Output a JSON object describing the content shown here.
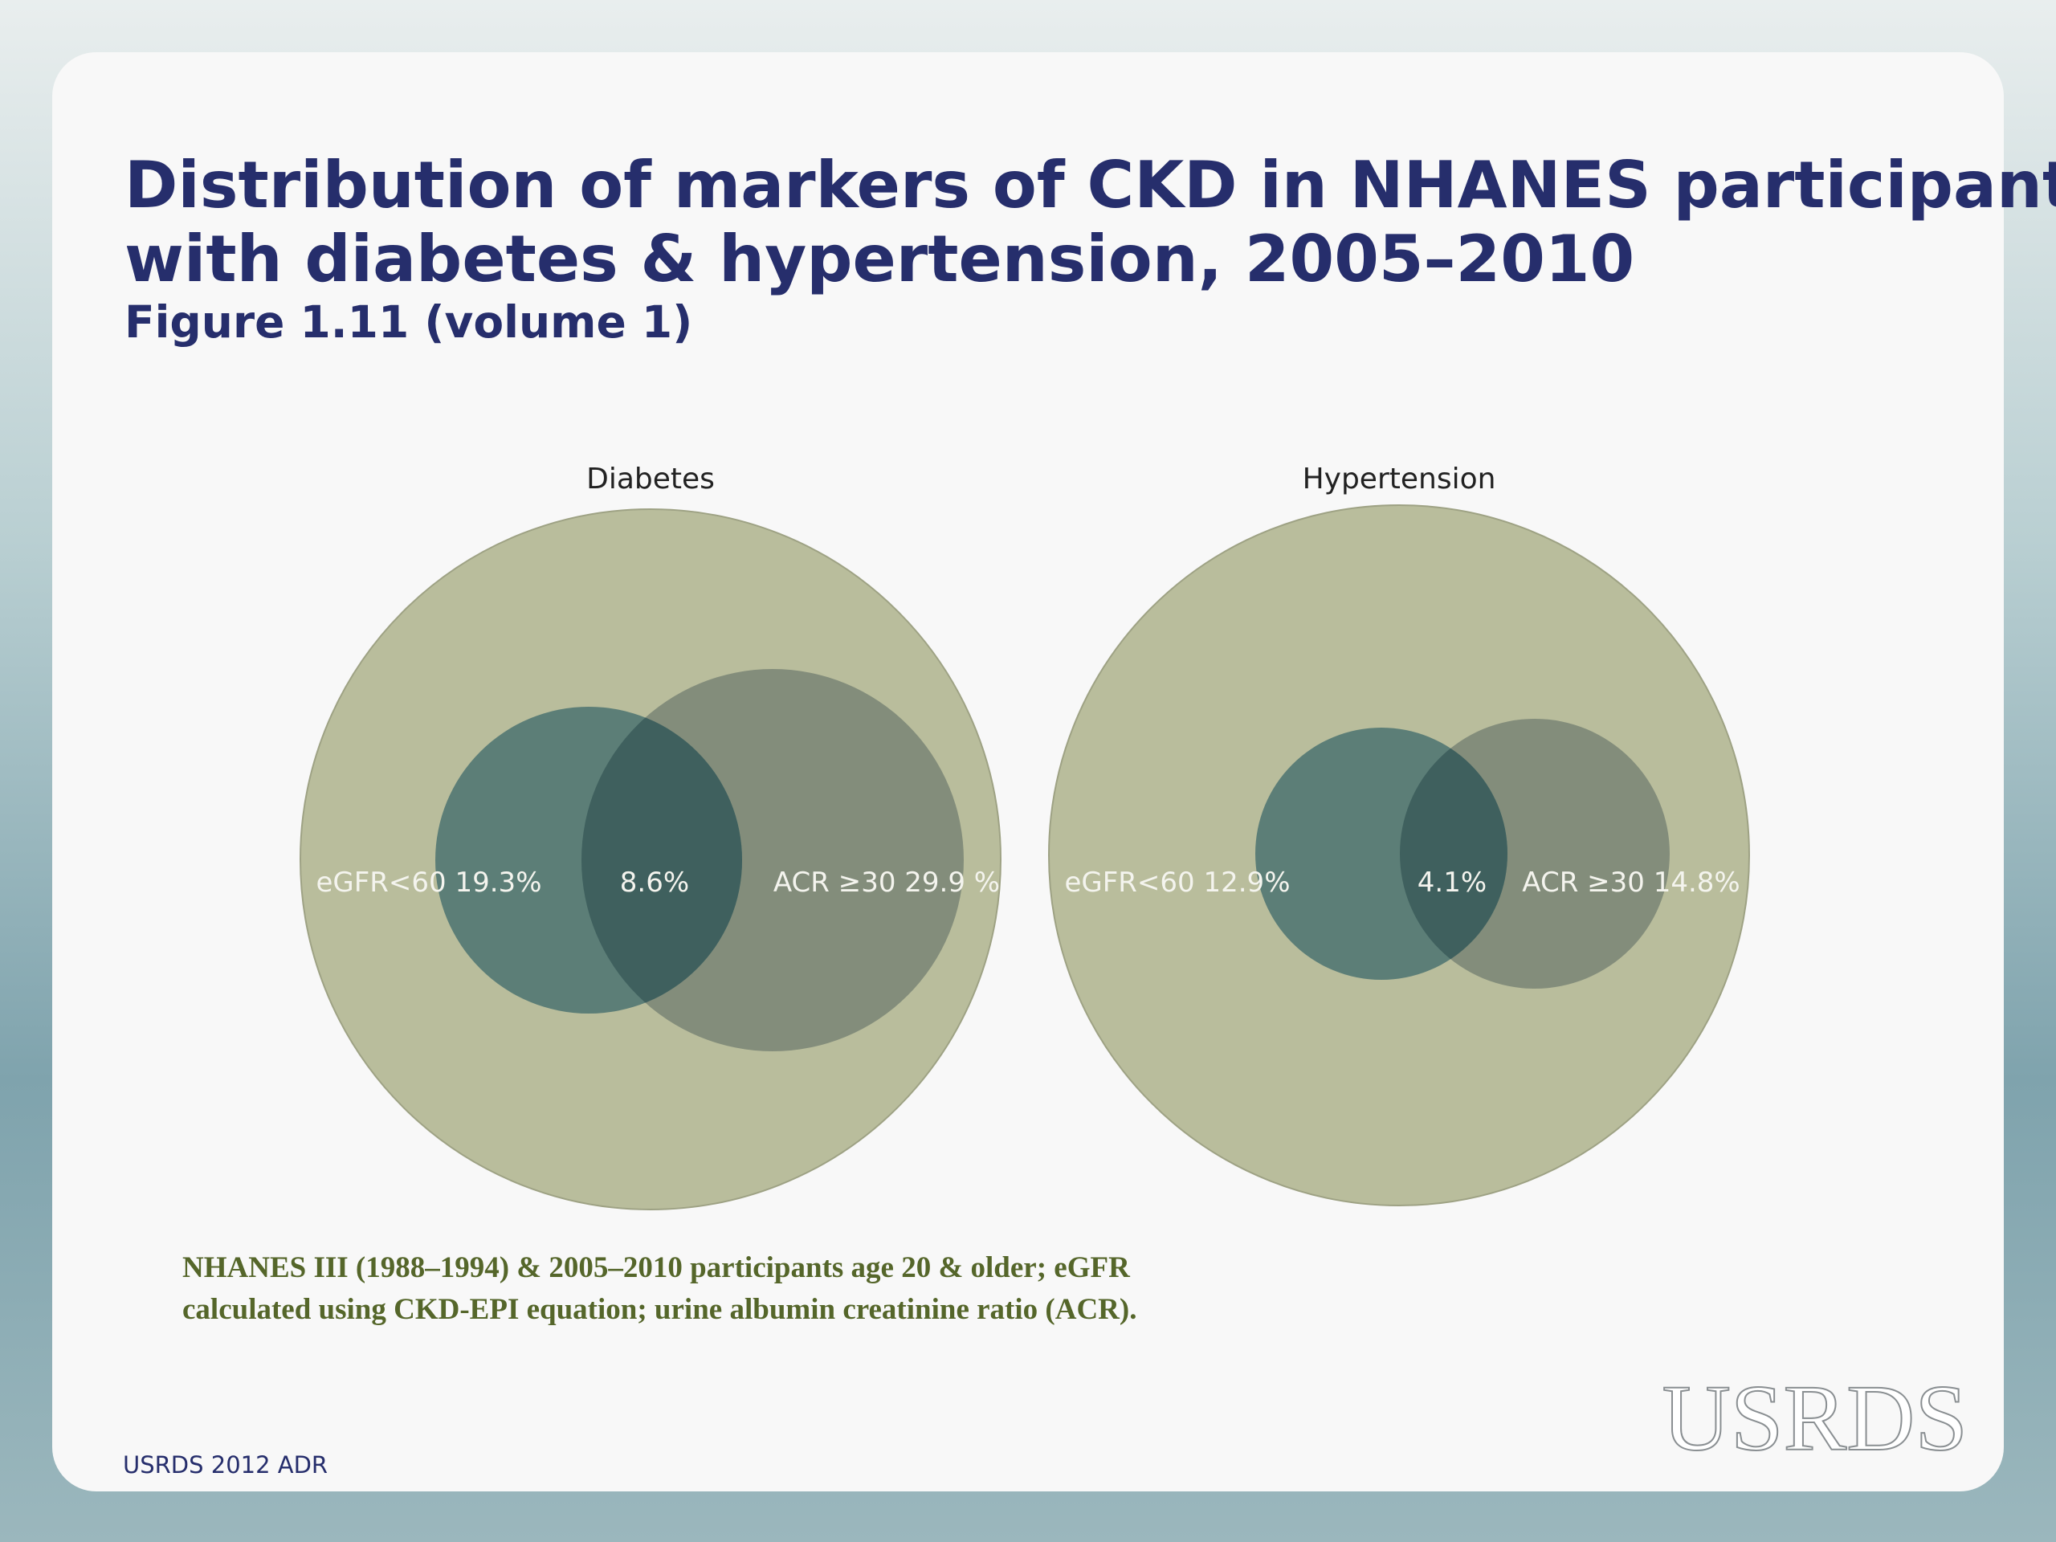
{
  "header": {
    "title_lines": [
      "Distribution of markers of CKD in NHANES participants",
      "with diabetes & hypertension, 2005–2010"
    ],
    "subtitle": "Figure 1.11 (volume 1)"
  },
  "panels": [
    {
      "title": "Diabetes",
      "labels": {
        "left": "eGFR<60 19.3%",
        "overlap": "8.6%",
        "right": "ACR ≥30 29.9 %"
      }
    },
    {
      "title": "Hypertension",
      "labels": {
        "left": "eGFR<60 12.9%",
        "overlap": "4.1%",
        "right": "ACR ≥30 14.8%"
      }
    }
  ],
  "footnote_lines": [
    "NHANES III (1988–1994) & 2005–2010 participants age 20 & older; eGFR",
    "calculated using CKD-EPI equation; urine albumin creatinine ratio (ACR)."
  ],
  "footer": "USRDS 2012 ADR",
  "logo": "USRDS"
}
